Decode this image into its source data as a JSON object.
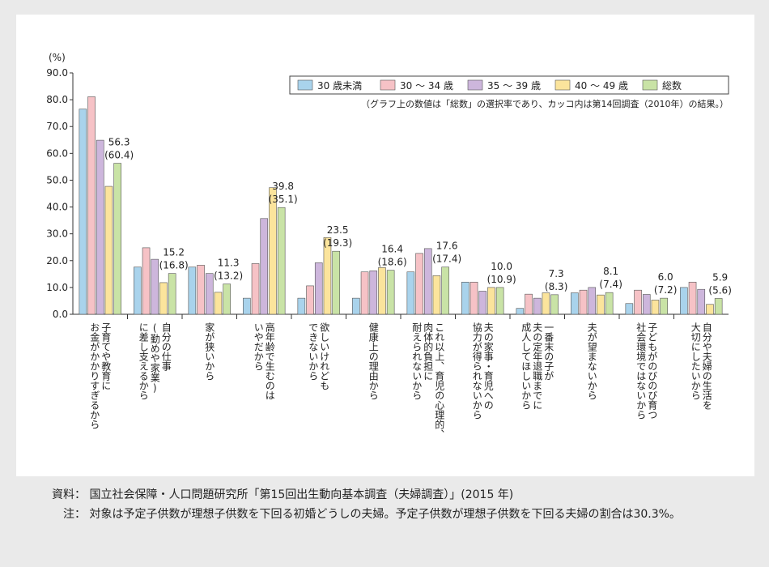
{
  "chart_data": {
    "type": "bar",
    "unit_label": "(%)",
    "ylim": [
      0,
      90
    ],
    "yticks": [
      "0.0",
      "10.0",
      "20.0",
      "30.0",
      "40.0",
      "50.0",
      "60.0",
      "70.0",
      "80.0",
      "90.0"
    ],
    "categories": [
      [
        "子育てや教育に",
        "お金がかかりすぎるから"
      ],
      [
        "自分の仕事",
        "(勤めや家業)",
        "に差し支えるから"
      ],
      [
        "家が狭いから"
      ],
      [
        "高年齢で生むのは",
        "いやだから"
      ],
      [
        "欲しいけれども",
        "できないから"
      ],
      [
        "健康上の理由から"
      ],
      [
        "これ以上、育児の心理的、",
        "肉体的負担に",
        "耐えられないから"
      ],
      [
        "夫の家事・育児への",
        "協力が得られないから"
      ],
      [
        "一番末の子が",
        "夫の定年退職までに",
        "成人してほしいから"
      ],
      [
        "夫が望まないから"
      ],
      [
        "子どもがのびのび育つ",
        "社会環境ではないから"
      ],
      [
        "自分や夫婦の生活を",
        "大切にしたいから"
      ]
    ],
    "series": [
      {
        "name": "30 歳未満",
        "color": "#a9d3ec",
        "values": [
          76.5,
          17.6,
          17.6,
          6.0,
          6.0,
          6.0,
          15.8,
          12.0,
          2.2,
          8.0,
          4.0,
          10.0
        ]
      },
      {
        "name": "30 ～ 34 歳",
        "color": "#f6c2c6",
        "values": [
          81.1,
          24.8,
          18.3,
          18.9,
          10.6,
          15.8,
          22.7,
          12.0,
          7.5,
          9.0,
          9.0,
          12.0
        ]
      },
      {
        "name": "35 ～ 39 歳",
        "color": "#cdb6dc",
        "values": [
          64.9,
          20.5,
          15.2,
          35.7,
          19.2,
          16.2,
          24.5,
          8.6,
          6.0,
          10.0,
          7.4,
          9.3
        ]
      },
      {
        "name": "40 ～ 49 歳",
        "color": "#fbe49c",
        "values": [
          47.7,
          11.8,
          8.2,
          47.2,
          28.6,
          17.4,
          14.4,
          10.0,
          8.0,
          7.2,
          5.3,
          3.7
        ]
      },
      {
        "name": "総数",
        "color": "#c9e3a6",
        "values": [
          56.3,
          15.2,
          11.3,
          39.8,
          23.5,
          16.4,
          17.6,
          10.0,
          7.3,
          8.1,
          6.0,
          5.9
        ]
      }
    ],
    "value_labels": [
      "56.3",
      "15.2",
      "11.3",
      "39.8",
      "23.5",
      "16.4",
      "17.6",
      "10.0",
      "7.3",
      "8.1",
      "6.0",
      "5.9"
    ],
    "prev_labels": [
      "(60.4)",
      "(16.8)",
      "(13.2)",
      "(35.1)",
      "(19.3)",
      "(18.6)",
      "(17.4)",
      "(10.9)",
      "(8.3)",
      "(7.4)",
      "(7.2)",
      "(5.6)"
    ],
    "legend_note": "（グラフ上の数値は「総数」の選択率であり、カッコ内は第14回調査（2010年）の結果。）",
    "legend_position": "top-right",
    "grid": false
  },
  "footer": {
    "source_label": "資料：",
    "source_text": "国立社会保障・人口問題研究所「第15回出生動向基本調査（夫婦調査）」(2015 年)",
    "note_label": "注：",
    "note_text": "対象は予定子供数が理想子供数を下回る初婚どうしの夫婦。予定子供数が理想子供数を下回る夫婦の割合は30.3%。"
  }
}
